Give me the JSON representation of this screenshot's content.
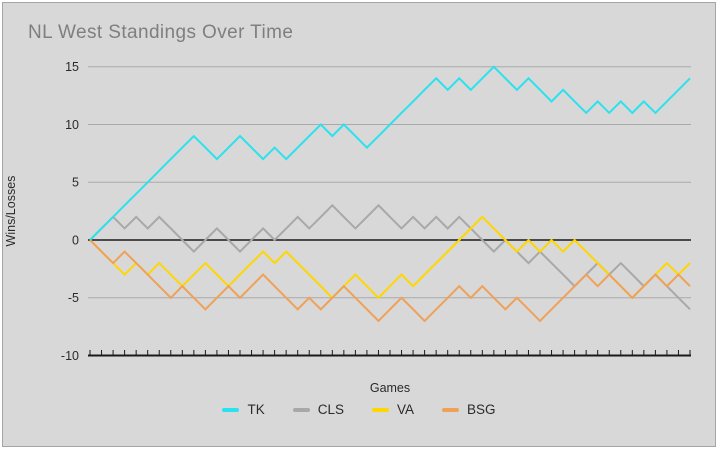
{
  "title": "NL West Standings Over Time",
  "axes": {
    "y_label": "Wins/Losses",
    "x_label": "Games",
    "y_ticks": [
      15,
      10,
      5,
      0,
      -5,
      -10
    ],
    "y_min": -10,
    "y_max": 15
  },
  "legend": [
    {
      "label": "TK",
      "color": "#2ae2ee"
    },
    {
      "label": "CLS",
      "color": "#a8a8a8"
    },
    {
      "label": "VA",
      "color": "#ffd600"
    },
    {
      "label": "BSG",
      "color": "#efa158"
    }
  ],
  "colors": {
    "background": "#d8d8d8",
    "border": "#a5a5a5",
    "gridline": "#aaaaaa",
    "axis_line": "#1a1a1a",
    "title_text": "#7f7f7f",
    "tick_text": "#2a2a2a"
  },
  "chart_data": {
    "type": "line",
    "title": "NL West Standings Over Time",
    "xlabel": "Games",
    "ylabel": "Wins/Losses",
    "ylim": [
      -10,
      15
    ],
    "grid": "horizontal",
    "legend_position": "bottom",
    "x": [
      0,
      1,
      2,
      3,
      4,
      5,
      6,
      7,
      8,
      9,
      10,
      11,
      12,
      13,
      14,
      15,
      16,
      17,
      18,
      19,
      20,
      21,
      22,
      23,
      24,
      25,
      26,
      27,
      28,
      29,
      30,
      31,
      32,
      33,
      34,
      35,
      36,
      37,
      38,
      39,
      40,
      41,
      42,
      43,
      44,
      45,
      46,
      47,
      48,
      49,
      50,
      51,
      52
    ],
    "series": [
      {
        "name": "TK",
        "color": "#2ae2ee",
        "values": [
          0,
          1,
          2,
          3,
          4,
          5,
          6,
          7,
          8,
          9,
          8,
          7,
          8,
          9,
          8,
          7,
          8,
          7,
          8,
          9,
          10,
          9,
          10,
          9,
          8,
          9,
          10,
          11,
          12,
          13,
          14,
          13,
          14,
          13,
          14,
          15,
          14,
          13,
          14,
          13,
          12,
          13,
          12,
          11,
          12,
          11,
          12,
          11,
          12,
          11,
          12,
          13,
          14
        ]
      },
      {
        "name": "CLS",
        "color": "#a8a8a8",
        "values": [
          0,
          1,
          2,
          1,
          2,
          1,
          2,
          1,
          0,
          -1,
          0,
          1,
          0,
          -1,
          0,
          1,
          0,
          1,
          2,
          1,
          2,
          3,
          2,
          1,
          2,
          3,
          2,
          1,
          2,
          1,
          2,
          1,
          2,
          1,
          0,
          -1,
          0,
          -1,
          -2,
          -1,
          -2,
          -3,
          -4,
          -3,
          -2,
          -3,
          -2,
          -3,
          -4,
          -3,
          -4,
          -5,
          -6
        ]
      },
      {
        "name": "VA",
        "color": "#ffd600",
        "values": [
          0,
          -1,
          -2,
          -3,
          -2,
          -3,
          -2,
          -3,
          -4,
          -3,
          -2,
          -3,
          -4,
          -3,
          -2,
          -1,
          -2,
          -1,
          -2,
          -3,
          -4,
          -5,
          -4,
          -3,
          -4,
          -5,
          -4,
          -3,
          -4,
          -3,
          -2,
          -1,
          0,
          1,
          2,
          1,
          0,
          -1,
          0,
          -1,
          0,
          -1,
          0,
          -1,
          -2,
          -3,
          -4,
          -5,
          -4,
          -3,
          -2,
          -3,
          -2
        ]
      },
      {
        "name": "BSG",
        "color": "#efa158",
        "values": [
          0,
          -1,
          -2,
          -1,
          -2,
          -3,
          -4,
          -5,
          -4,
          -5,
          -6,
          -5,
          -4,
          -5,
          -4,
          -3,
          -4,
          -5,
          -6,
          -5,
          -6,
          -5,
          -4,
          -5,
          -6,
          -7,
          -6,
          -5,
          -6,
          -7,
          -6,
          -5,
          -4,
          -5,
          -4,
          -5,
          -6,
          -5,
          -6,
          -7,
          -6,
          -5,
          -4,
          -3,
          -4,
          -3,
          -4,
          -5,
          -4,
          -3,
          -4,
          -3,
          -4
        ]
      }
    ]
  }
}
